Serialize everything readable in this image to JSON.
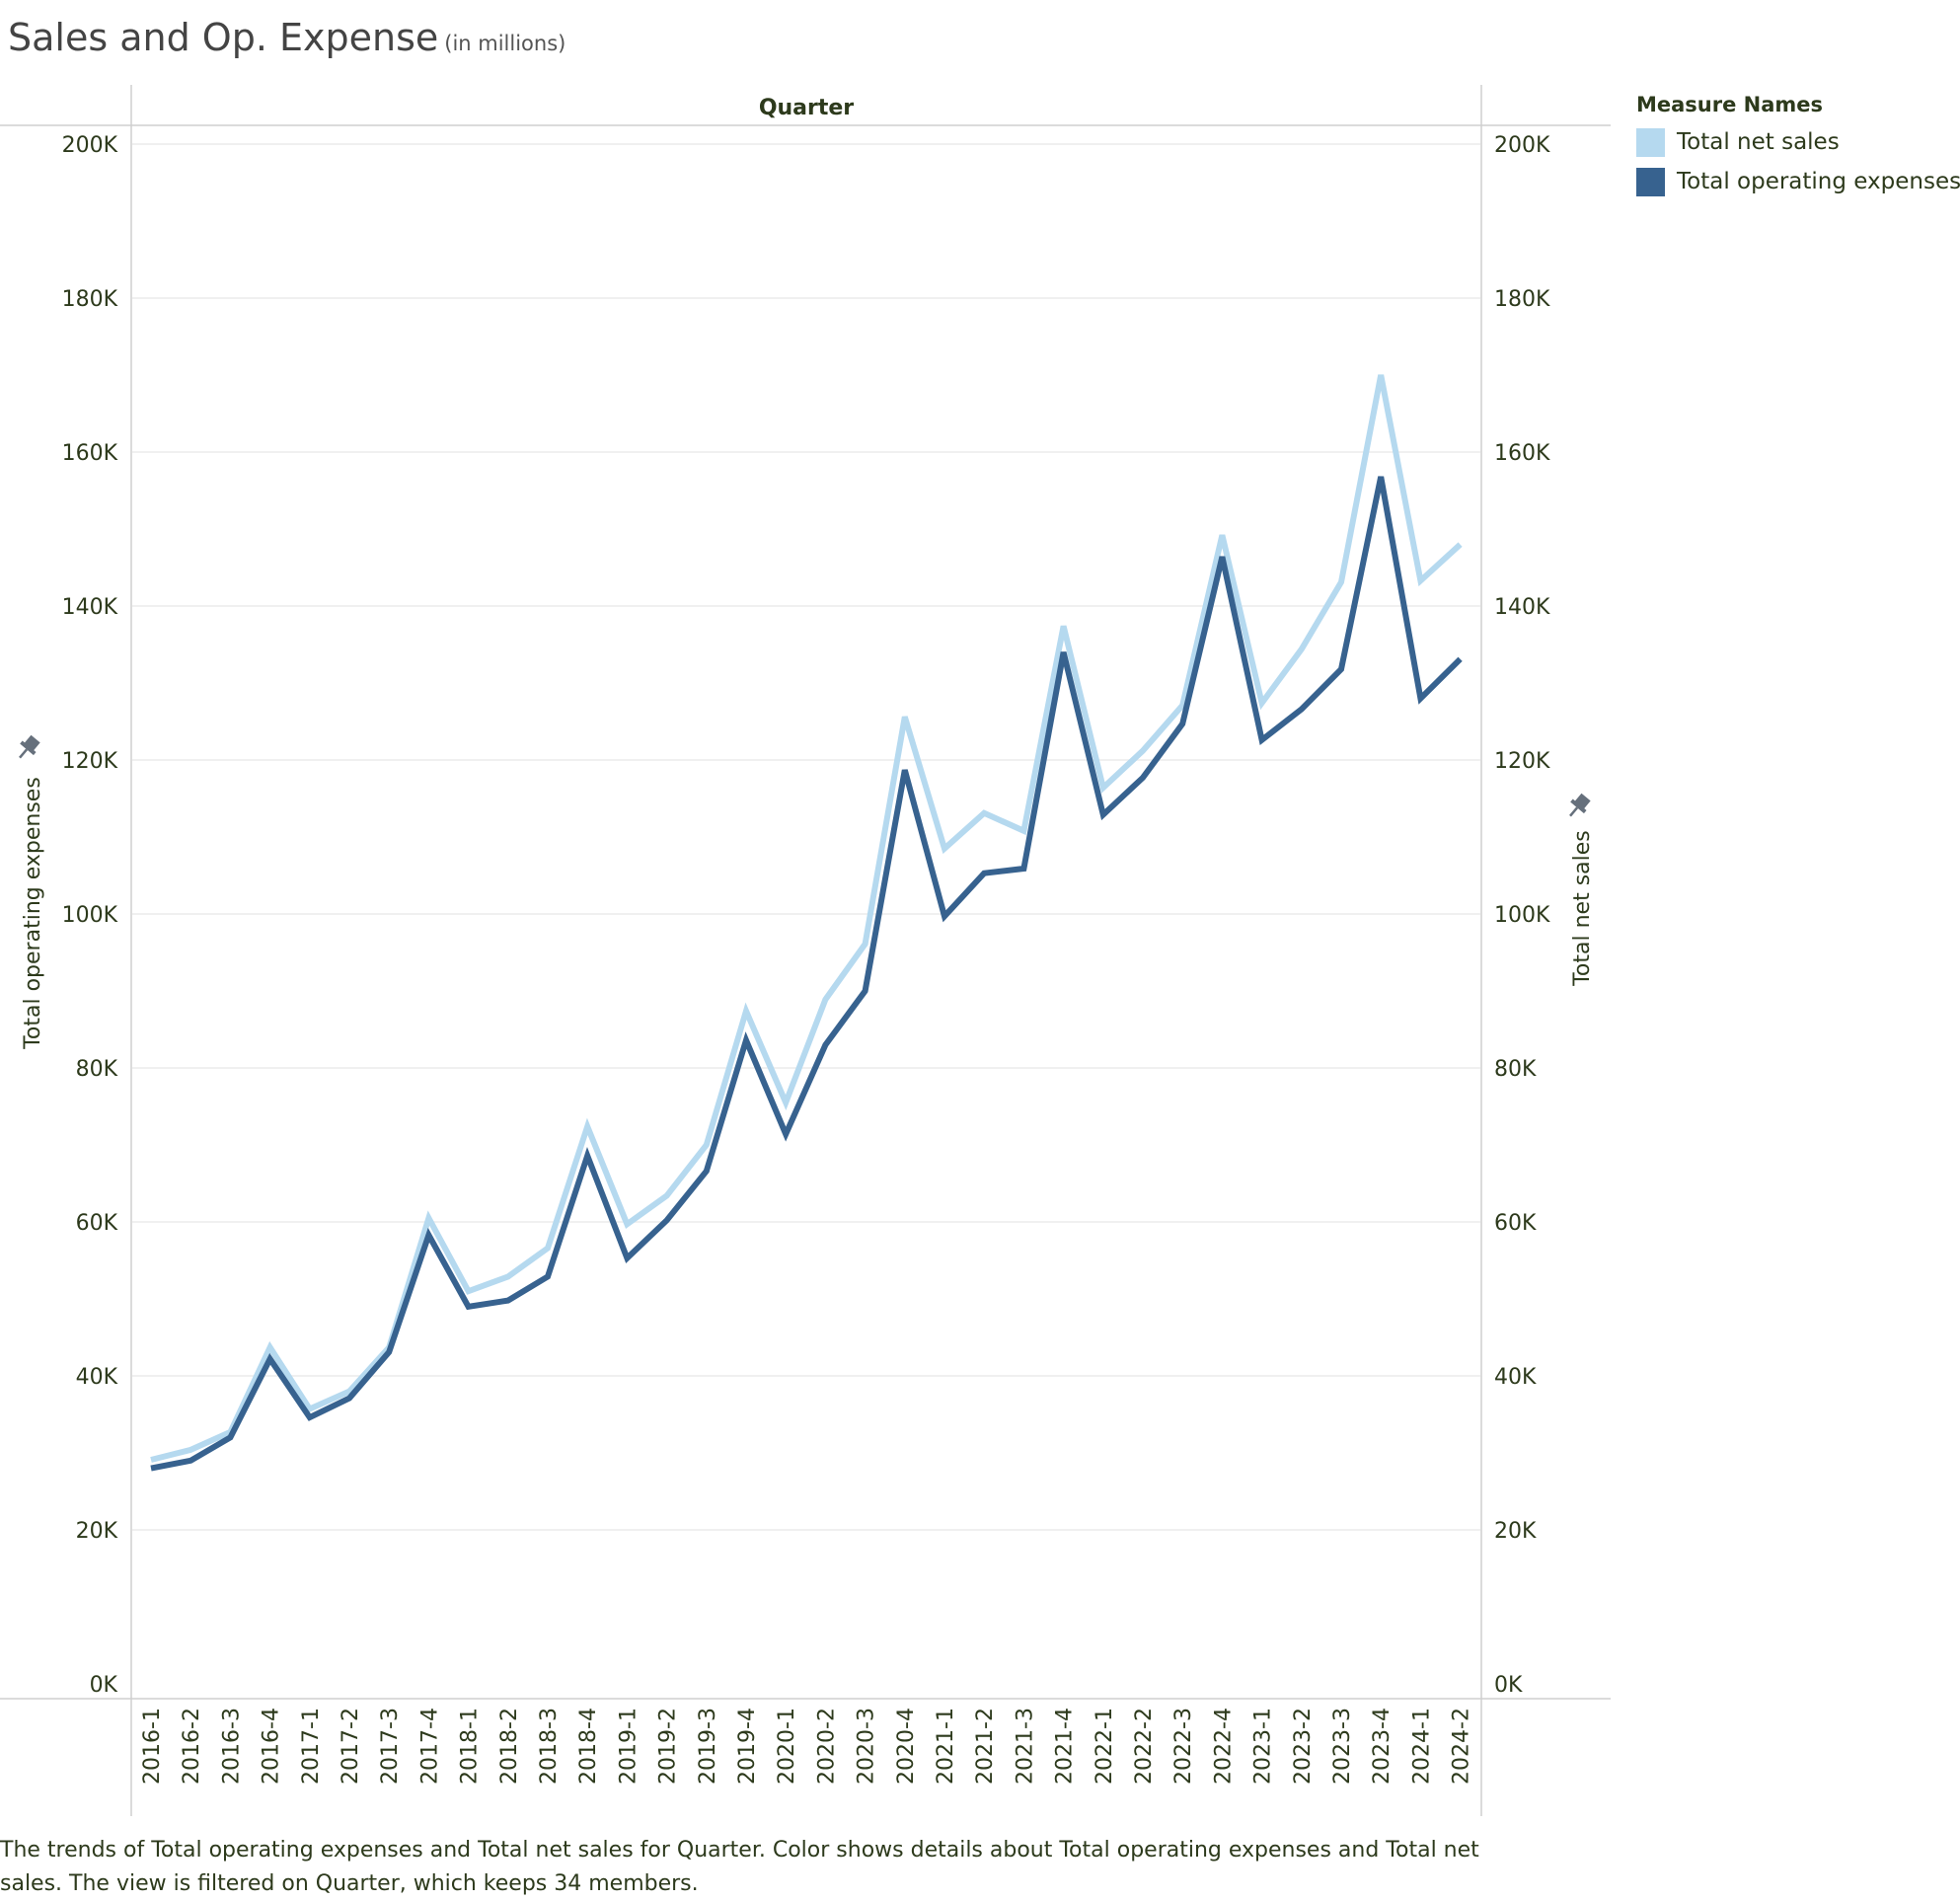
{
  "title": {
    "main": "Sales and Op. Expense",
    "sub": "(in millions)"
  },
  "caption": "The trends of Total operating expenses and Total net sales for Quarter.  Color shows details about Total operating expenses and Total net sales. The view is filtered on Quarter, which keeps 34 members.",
  "legend": {
    "title": "Measure Names",
    "items": [
      {
        "label": "Total net sales",
        "color": "#b5d9ef"
      },
      {
        "label": "Total operating expenses",
        "color": "#37628f"
      }
    ],
    "placement": "right"
  },
  "chart_data": {
    "type": "line",
    "x_header": "Quarter",
    "xlabel": "Quarter",
    "ylabel_left": "Total operating expenses",
    "ylabel_right": "Total net sales",
    "ylim": [
      0,
      200000
    ],
    "yticks": [
      "0K",
      "20K",
      "40K",
      "60K",
      "80K",
      "100K",
      "120K",
      "140K",
      "160K",
      "180K",
      "200K"
    ],
    "ytick_values": [
      0,
      20000,
      40000,
      60000,
      80000,
      100000,
      120000,
      140000,
      160000,
      180000,
      200000
    ],
    "grid": true,
    "categories": [
      "2016-1",
      "2016-2",
      "2016-3",
      "2016-4",
      "2017-1",
      "2017-2",
      "2017-3",
      "2017-4",
      "2018-1",
      "2018-2",
      "2018-3",
      "2018-4",
      "2019-1",
      "2019-2",
      "2019-3",
      "2019-4",
      "2020-1",
      "2020-2",
      "2020-3",
      "2020-4",
      "2021-1",
      "2021-2",
      "2021-3",
      "2021-4",
      "2022-1",
      "2022-2",
      "2022-3",
      "2022-4",
      "2023-1",
      "2023-2",
      "2023-3",
      "2023-4",
      "2024-1",
      "2024-2"
    ],
    "series": [
      {
        "name": "Total net sales",
        "color": "#b5d9ef",
        "values": [
          29100,
          30400,
          32700,
          43700,
          35700,
          38000,
          43700,
          60500,
          51000,
          52900,
          56600,
          72400,
          59700,
          63400,
          70000,
          87400,
          75500,
          88900,
          96100,
          125600,
          108500,
          113100,
          110800,
          137400,
          116400,
          121200,
          127100,
          149200,
          127400,
          134400,
          143100,
          170000,
          143300,
          148000
        ]
      },
      {
        "name": "Total operating expenses",
        "color": "#37628f",
        "values": [
          28000,
          29000,
          32000,
          42200,
          34600,
          37100,
          43100,
          58300,
          49000,
          49800,
          52900,
          68600,
          55300,
          60200,
          66600,
          83600,
          71400,
          83000,
          90000,
          118700,
          99700,
          105300,
          105900,
          134000,
          112900,
          117700,
          124700,
          146400,
          122600,
          126600,
          131800,
          156800,
          128000,
          133100
        ]
      }
    ]
  }
}
